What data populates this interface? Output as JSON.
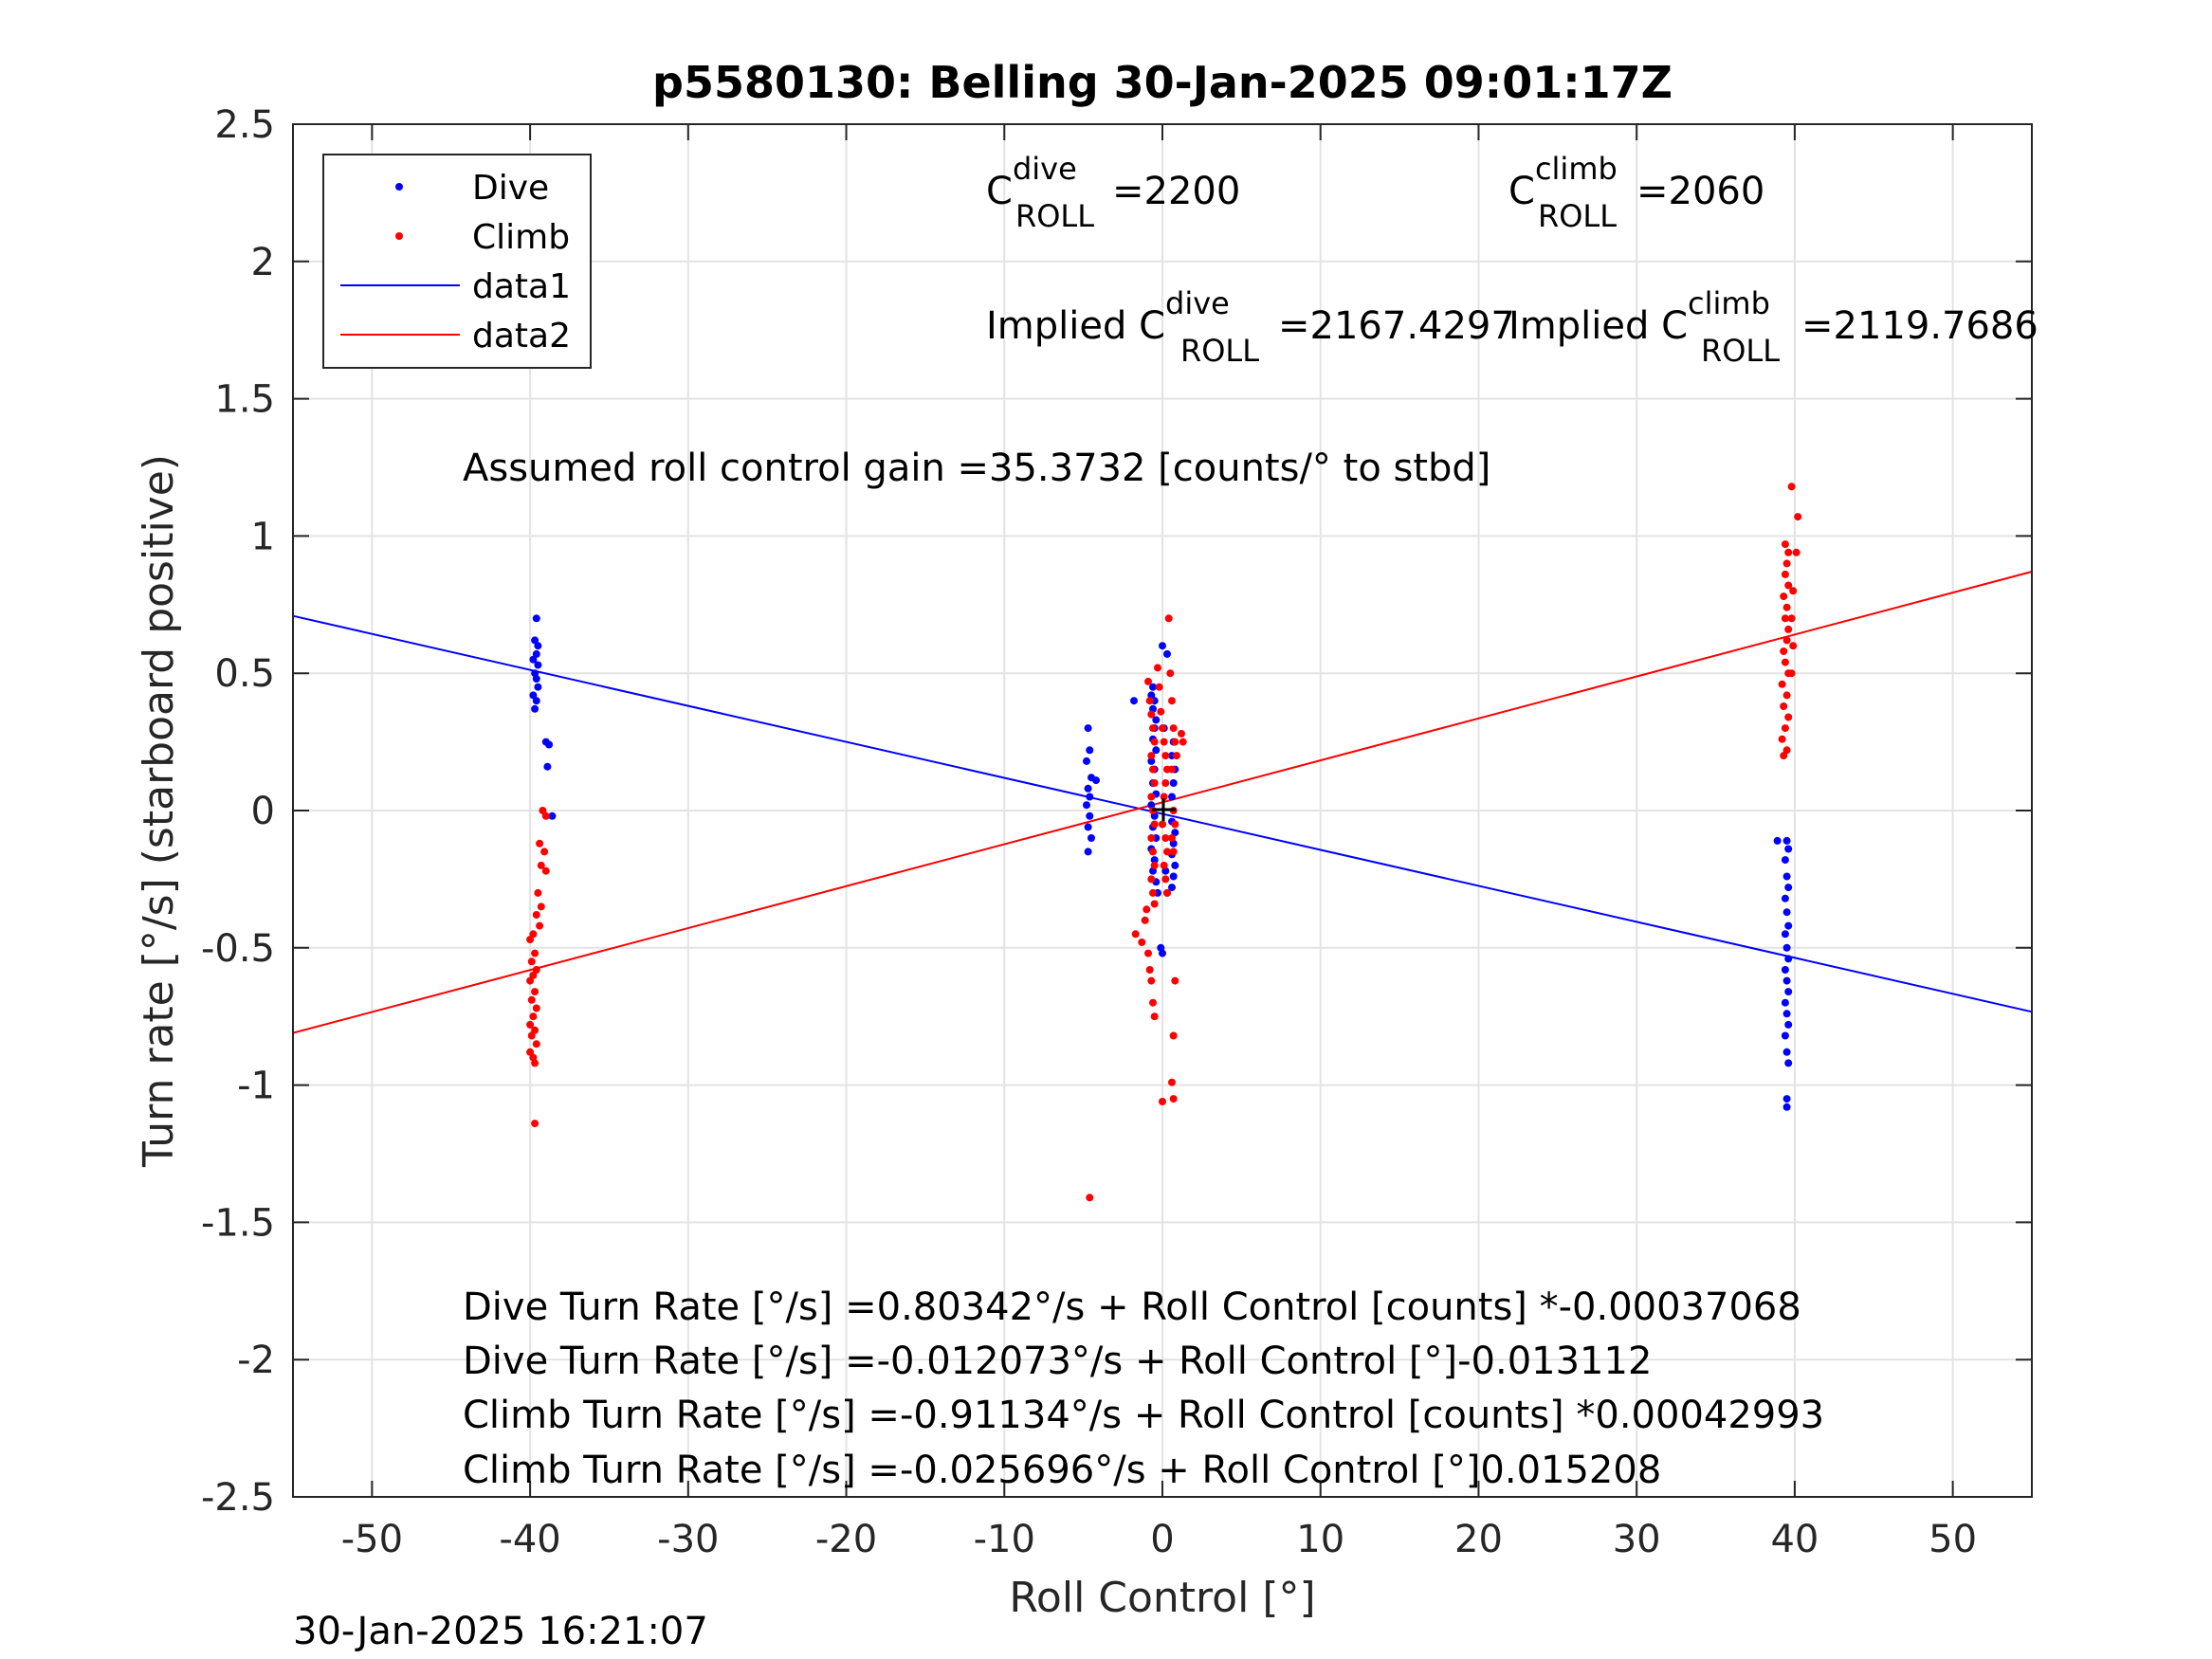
{
  "chart_data": {
    "type": "scatter",
    "title": "p5580130: Belling 30-Jan-2025 09:01:17Z",
    "xlabel": "Roll Control [°]",
    "ylabel": "Turn rate [°/s] (starboard positive)",
    "xlim": [
      -55,
      55
    ],
    "ylim": [
      -2.5,
      2.5
    ],
    "xticks": [
      -50,
      -40,
      -30,
      -20,
      -10,
      0,
      10,
      20,
      30,
      40,
      50
    ],
    "yticks": [
      -2.5,
      -2,
      -1.5,
      -1,
      -0.5,
      0,
      0.5,
      1,
      1.5,
      2,
      2.5
    ],
    "xtick_labels": [
      "-50",
      "-40",
      "-30",
      "-20",
      "-10",
      "0",
      "10",
      "20",
      "30",
      "40",
      "50"
    ],
    "ytick_labels": [
      "-2.5",
      "-2",
      "-1.5",
      "-1",
      "-0.5",
      "0",
      "0.5",
      "1",
      "1.5",
      "2",
      "2.5"
    ],
    "grid": true,
    "legend_position": "top-left",
    "legend": [
      "Dive",
      "Climb",
      "data1",
      "data2"
    ],
    "series": [
      {
        "name": "Dive",
        "type": "scatter",
        "color": "#0000ff",
        "points": [
          [
            -39.6,
            0.7
          ],
          [
            -39.7,
            0.62
          ],
          [
            -39.5,
            0.6
          ],
          [
            -39.6,
            0.57
          ],
          [
            -39.8,
            0.55
          ],
          [
            -39.5,
            0.53
          ],
          [
            -39.7,
            0.5
          ],
          [
            -39.6,
            0.48
          ],
          [
            -39.5,
            0.45
          ],
          [
            -39.8,
            0.42
          ],
          [
            -39.6,
            0.4
          ],
          [
            -39.7,
            0.37
          ],
          [
            -39.0,
            0.25
          ],
          [
            -38.8,
            0.24
          ],
          [
            -38.9,
            0.16
          ],
          [
            -38.6,
            -0.02
          ],
          [
            -4.7,
            0.3
          ],
          [
            -4.6,
            0.22
          ],
          [
            -4.8,
            0.18
          ],
          [
            -4.5,
            0.12
          ],
          [
            -4.7,
            0.08
          ],
          [
            -4.6,
            0.05
          ],
          [
            -4.8,
            0.02
          ],
          [
            -4.6,
            -0.02
          ],
          [
            -4.7,
            -0.06
          ],
          [
            -4.5,
            -0.1
          ],
          [
            -4.7,
            -0.15
          ],
          [
            -4.2,
            0.11
          ],
          [
            -1.8,
            0.4
          ],
          [
            -0.6,
            0.45
          ],
          [
            -0.7,
            0.42
          ],
          [
            -0.5,
            0.4
          ],
          [
            -0.6,
            0.37
          ],
          [
            -0.4,
            0.33
          ],
          [
            -0.5,
            0.3
          ],
          [
            -0.6,
            0.26
          ],
          [
            -0.4,
            0.22
          ],
          [
            -0.7,
            0.18
          ],
          [
            -0.5,
            0.15
          ],
          [
            -0.6,
            0.1
          ],
          [
            -0.4,
            0.06
          ],
          [
            -0.7,
            0.02
          ],
          [
            -0.5,
            -0.02
          ],
          [
            -0.6,
            -0.06
          ],
          [
            -0.4,
            -0.1
          ],
          [
            -0.7,
            -0.14
          ],
          [
            -0.5,
            -0.18
          ],
          [
            -0.6,
            -0.22
          ],
          [
            -0.4,
            -0.26
          ],
          [
            -0.3,
            -0.3
          ],
          [
            -0.1,
            -0.5
          ],
          [
            0.0,
            0.6
          ],
          [
            0.0,
            -0.52
          ],
          [
            0.3,
            0.57
          ],
          [
            0.6,
            -0.04
          ],
          [
            0.7,
            0.25
          ],
          [
            0.6,
            0.2
          ],
          [
            0.8,
            0.15
          ],
          [
            0.7,
            0.1
          ],
          [
            0.6,
            0.05
          ],
          [
            0.8,
            -0.08
          ],
          [
            0.7,
            -0.12
          ],
          [
            0.6,
            -0.16
          ],
          [
            0.8,
            -0.2
          ],
          [
            0.7,
            -0.24
          ],
          [
            0.6,
            -0.28
          ],
          [
            0.3,
            -0.3
          ],
          [
            0.2,
            -0.22
          ],
          [
            0.1,
            0.3
          ],
          [
            38.9,
            -0.11
          ],
          [
            39.5,
            -0.11
          ],
          [
            39.6,
            -0.14
          ],
          [
            39.4,
            -0.18
          ],
          [
            39.5,
            -0.24
          ],
          [
            39.6,
            -0.28
          ],
          [
            39.4,
            -0.32
          ],
          [
            39.5,
            -0.37
          ],
          [
            39.6,
            -0.42
          ],
          [
            39.4,
            -0.45
          ],
          [
            39.5,
            -0.5
          ],
          [
            39.6,
            -0.54
          ],
          [
            39.4,
            -0.58
          ],
          [
            39.5,
            -0.62
          ],
          [
            39.6,
            -0.66
          ],
          [
            39.4,
            -0.7
          ],
          [
            39.5,
            -0.74
          ],
          [
            39.6,
            -0.78
          ],
          [
            39.4,
            -0.82
          ],
          [
            39.5,
            -0.88
          ],
          [
            39.6,
            -0.92
          ],
          [
            39.5,
            -1.05
          ],
          [
            39.5,
            -1.08
          ]
        ]
      },
      {
        "name": "Climb",
        "type": "scatter",
        "color": "#ff0000",
        "points": [
          [
            -39.2,
            0.0
          ],
          [
            -39.0,
            -0.02
          ],
          [
            -39.4,
            -0.12
          ],
          [
            -39.1,
            -0.15
          ],
          [
            -39.3,
            -0.2
          ],
          [
            -39.0,
            -0.22
          ],
          [
            -39.5,
            -0.3
          ],
          [
            -39.3,
            -0.35
          ],
          [
            -39.6,
            -0.38
          ],
          [
            -39.4,
            -0.42
          ],
          [
            -39.8,
            -0.45
          ],
          [
            -40.0,
            -0.47
          ],
          [
            -39.7,
            -0.52
          ],
          [
            -39.9,
            -0.55
          ],
          [
            -39.6,
            -0.58
          ],
          [
            -39.8,
            -0.6
          ],
          [
            -40.0,
            -0.62
          ],
          [
            -39.7,
            -0.66
          ],
          [
            -39.9,
            -0.69
          ],
          [
            -39.6,
            -0.72
          ],
          [
            -39.8,
            -0.75
          ],
          [
            -40.0,
            -0.78
          ],
          [
            -39.7,
            -0.8
          ],
          [
            -39.9,
            -0.82
          ],
          [
            -39.6,
            -0.85
          ],
          [
            -40.0,
            -0.88
          ],
          [
            -39.8,
            -0.9
          ],
          [
            -39.7,
            -0.92
          ],
          [
            -39.7,
            -1.14
          ],
          [
            -4.6,
            -1.41
          ],
          [
            -1.7,
            -0.45
          ],
          [
            -1.3,
            -0.48
          ],
          [
            -1.1,
            -0.4
          ],
          [
            -1.0,
            -0.36
          ],
          [
            -0.9,
            0.47
          ],
          [
            -0.8,
            0.4
          ],
          [
            -0.7,
            0.35
          ],
          [
            -0.6,
            0.3
          ],
          [
            -0.5,
            0.25
          ],
          [
            -0.7,
            0.2
          ],
          [
            -0.6,
            0.15
          ],
          [
            -0.5,
            0.1
          ],
          [
            -0.7,
            0.05
          ],
          [
            -0.6,
            0.0
          ],
          [
            -0.5,
            -0.05
          ],
          [
            -0.7,
            -0.1
          ],
          [
            -0.6,
            -0.15
          ],
          [
            -0.5,
            -0.2
          ],
          [
            -0.7,
            -0.25
          ],
          [
            -0.6,
            -0.3
          ],
          [
            -0.5,
            -0.34
          ],
          [
            -0.9,
            -0.52
          ],
          [
            -0.8,
            -0.58
          ],
          [
            -0.7,
            -0.62
          ],
          [
            -0.6,
            -0.7
          ],
          [
            -0.5,
            -0.75
          ],
          [
            -0.3,
            0.52
          ],
          [
            -0.2,
            0.45
          ],
          [
            -0.1,
            0.36
          ],
          [
            0.0,
            0.3
          ],
          [
            0.1,
            0.25
          ],
          [
            0.2,
            0.2
          ],
          [
            0.3,
            0.15
          ],
          [
            0.2,
            0.1
          ],
          [
            0.1,
            0.05
          ],
          [
            0.0,
            -0.05
          ],
          [
            0.2,
            -0.1
          ],
          [
            0.3,
            -0.15
          ],
          [
            0.1,
            -0.2
          ],
          [
            0.2,
            -0.25
          ],
          [
            0.3,
            -0.3
          ],
          [
            0.0,
            -1.06
          ],
          [
            0.4,
            0.7
          ],
          [
            0.5,
            0.5
          ],
          [
            0.6,
            0.4
          ],
          [
            0.7,
            0.3
          ],
          [
            0.8,
            0.25
          ],
          [
            0.9,
            0.2
          ],
          [
            0.6,
            0.15
          ],
          [
            0.7,
            0.0
          ],
          [
            0.8,
            -0.05
          ],
          [
            0.6,
            -0.1
          ],
          [
            0.7,
            -0.15
          ],
          [
            0.8,
            -0.62
          ],
          [
            0.7,
            -0.82
          ],
          [
            0.6,
            -0.99
          ],
          [
            0.7,
            -1.05
          ],
          [
            1.2,
            0.28
          ],
          [
            1.3,
            0.25
          ],
          [
            39.3,
            0.2
          ],
          [
            39.5,
            0.22
          ],
          [
            39.2,
            0.26
          ],
          [
            39.4,
            0.3
          ],
          [
            39.6,
            0.34
          ],
          [
            39.3,
            0.38
          ],
          [
            39.5,
            0.42
          ],
          [
            39.2,
            0.46
          ],
          [
            39.6,
            0.5
          ],
          [
            39.4,
            0.54
          ],
          [
            39.3,
            0.58
          ],
          [
            39.5,
            0.62
          ],
          [
            39.6,
            0.66
          ],
          [
            39.4,
            0.7
          ],
          [
            39.5,
            0.74
          ],
          [
            39.3,
            0.78
          ],
          [
            39.6,
            0.82
          ],
          [
            39.4,
            0.86
          ],
          [
            39.5,
            0.9
          ],
          [
            39.6,
            0.94
          ],
          [
            39.4,
            0.97
          ],
          [
            39.8,
            0.5
          ],
          [
            39.9,
            0.6
          ],
          [
            39.8,
            0.7
          ],
          [
            39.9,
            0.8
          ],
          [
            40.1,
            0.94
          ],
          [
            40.2,
            1.07
          ],
          [
            39.8,
            1.18
          ]
        ]
      },
      {
        "name": "data1",
        "type": "line",
        "color": "#0000ff",
        "points": [
          [
            -55,
            0.709
          ],
          [
            55,
            -0.733
          ]
        ]
      },
      {
        "name": "data2",
        "type": "line",
        "color": "#ff0000",
        "points": [
          [
            -55,
            -0.81
          ],
          [
            55,
            0.87
          ]
        ]
      }
    ],
    "annotations": {
      "c_roll_dive": {
        "base": "C",
        "sup": "dive",
        "sub": "ROLL",
        "value": "=2200"
      },
      "c_roll_climb": {
        "base": "C",
        "sup": "climb",
        "sub": "ROLL",
        "value": "=2060"
      },
      "implied_dive": {
        "prefix": "Implied C",
        "sup": "dive",
        "sub": "ROLL",
        "value": "=2167.4297"
      },
      "implied_climb": {
        "prefix": "Implied C",
        "sup": "climb",
        "sub": "ROLL",
        "value": "=2119.7686"
      },
      "gain": "Assumed roll control gain =35.3732 [counts/° to stbd]",
      "eq1": "Dive Turn Rate [°/s] =0.80342°/s + Roll Control [counts] *-0.00037068",
      "eq2": "Dive Turn Rate [°/s] =-0.012073°/s + Roll Control [°]-0.013112",
      "eq3": "Climb Turn Rate [°/s] =-0.91134°/s + Roll Control [counts] *0.00042993",
      "eq4": "Climb Turn Rate [°/s] =-0.025696°/s + Roll Control [°]0.015208"
    },
    "timestamp": "30-Jan-2025 16:21:07"
  }
}
